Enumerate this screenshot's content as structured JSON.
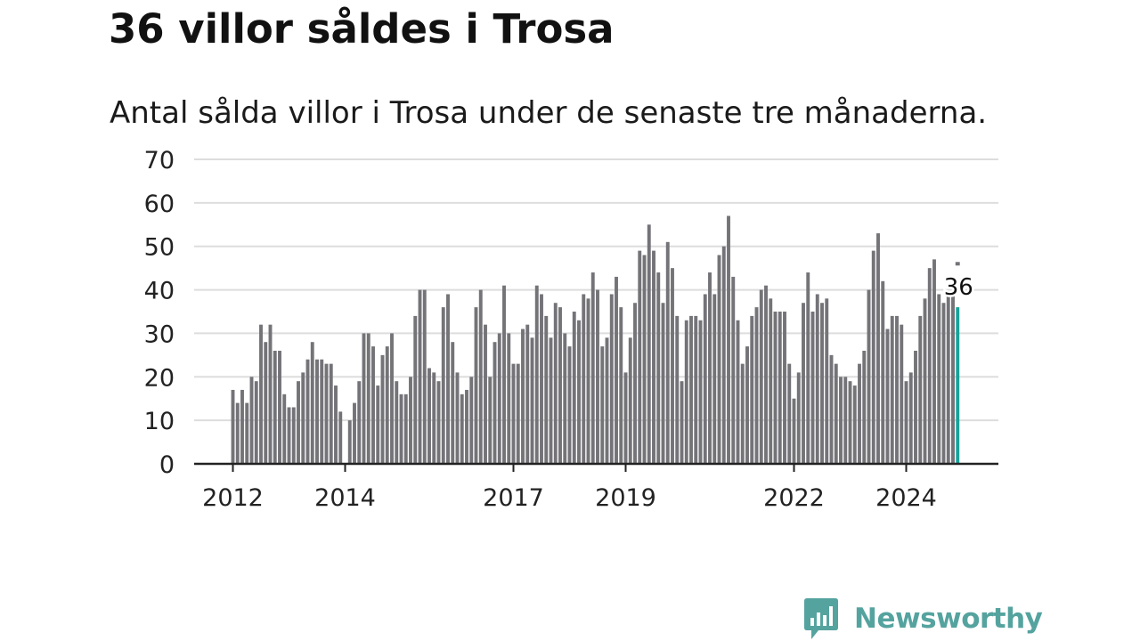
{
  "title": "36 villor såldes i Trosa",
  "subtitle": "Antal sålda villor i Trosa under de senaste tre månaderna.",
  "logo": {
    "text": "Newsworthy",
    "icon": "bar-chart-speech-bubble-icon"
  },
  "colors": {
    "bar": "#747378",
    "highlight": "#16a39a",
    "grid": "#dddddd",
    "axis": "#222222",
    "brand": "#55a39f"
  },
  "chart_data": {
    "type": "bar",
    "title": "",
    "xlabel": "",
    "ylabel": "",
    "ylim": [
      0,
      70
    ],
    "yticks": [
      0,
      10,
      20,
      30,
      40,
      50,
      60,
      70
    ],
    "grid": true,
    "x_axis_type": "monthly dates",
    "xtick_labels": [
      "2012",
      "2014",
      "2017",
      "2019",
      "2022",
      "2024"
    ],
    "xtick_months": [
      "2012-01",
      "2014-01",
      "2017-01",
      "2019-01",
      "2022-01",
      "2024-01"
    ],
    "start_month": "2012-01",
    "series": [
      {
        "values": [
          17,
          14,
          17,
          14,
          20,
          19,
          32,
          28,
          32,
          26,
          26,
          16,
          13,
          13,
          19,
          21,
          24,
          28,
          24,
          24,
          23,
          23,
          18,
          12,
          null,
          10,
          14,
          19,
          30,
          30,
          27,
          18,
          25,
          27,
          30,
          19,
          16,
          16,
          20,
          34,
          40,
          40,
          22,
          21,
          19,
          36,
          39,
          28,
          21,
          16,
          17,
          20,
          36,
          40,
          32,
          20,
          28,
          30,
          41,
          30,
          23,
          23,
          31,
          32,
          29,
          41,
          39,
          34,
          29,
          37,
          36,
          30,
          27,
          35,
          33,
          39,
          38,
          44,
          40,
          27,
          29,
          39,
          43,
          36,
          21,
          29,
          37,
          49,
          48,
          55,
          49,
          44,
          37,
          51,
          45,
          34,
          19,
          33,
          34,
          34,
          33,
          39,
          44,
          39,
          48,
          50,
          57,
          43,
          33,
          23,
          27,
          34,
          36,
          40,
          41,
          38,
          35,
          35,
          35,
          23,
          15,
          21,
          37,
          44,
          35,
          39,
          37,
          38,
          25,
          23,
          20,
          20,
          19,
          18,
          23,
          26,
          40,
          49,
          53,
          42,
          31,
          34,
          34,
          32,
          19,
          21,
          26,
          34,
          38,
          45,
          47,
          39,
          37,
          39,
          39,
          36
        ]
      }
    ],
    "latest": {
      "month": "2024-12",
      "value": 36,
      "label": "36"
    },
    "previous_year_marker": {
      "month": "2024-12",
      "value": 46
    }
  }
}
